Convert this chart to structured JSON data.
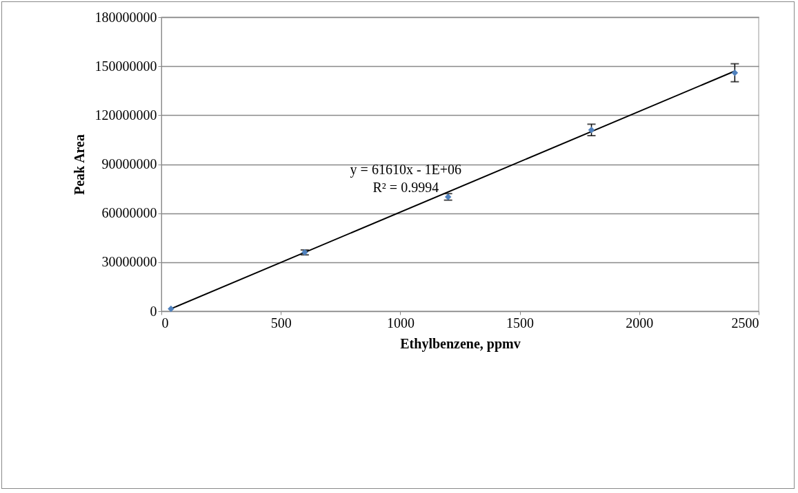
{
  "chart_data": {
    "type": "scatter",
    "xlabel": "Ethylbenzene, ppmv",
    "ylabel": "Peak Area",
    "xlim": [
      0,
      2500
    ],
    "xticks": [
      0,
      500,
      1000,
      1500,
      2000,
      2500
    ],
    "ylim": [
      0,
      180000000
    ],
    "yticks": [
      0,
      30000000,
      60000000,
      90000000,
      120000000,
      150000000,
      180000000
    ],
    "grid": "y",
    "legend": false,
    "annotations": [
      "y = 61610x - 1E+06",
      "R² = 0.9994"
    ],
    "series": [
      {
        "marker": "diamond",
        "color": "#4f81bd",
        "x": [
          40,
          600,
          1200,
          1800,
          2400
        ],
        "values": [
          1500000,
          36000000,
          70000000,
          111000000,
          146000000
        ],
        "errors": [
          null,
          1500000,
          2000000,
          3500000,
          5500000
        ]
      },
      {
        "type": "line",
        "marker": "none",
        "color": "#000000",
        "x": [
          40,
          2400
        ],
        "values": [
          1500000,
          147000000
        ]
      }
    ]
  }
}
